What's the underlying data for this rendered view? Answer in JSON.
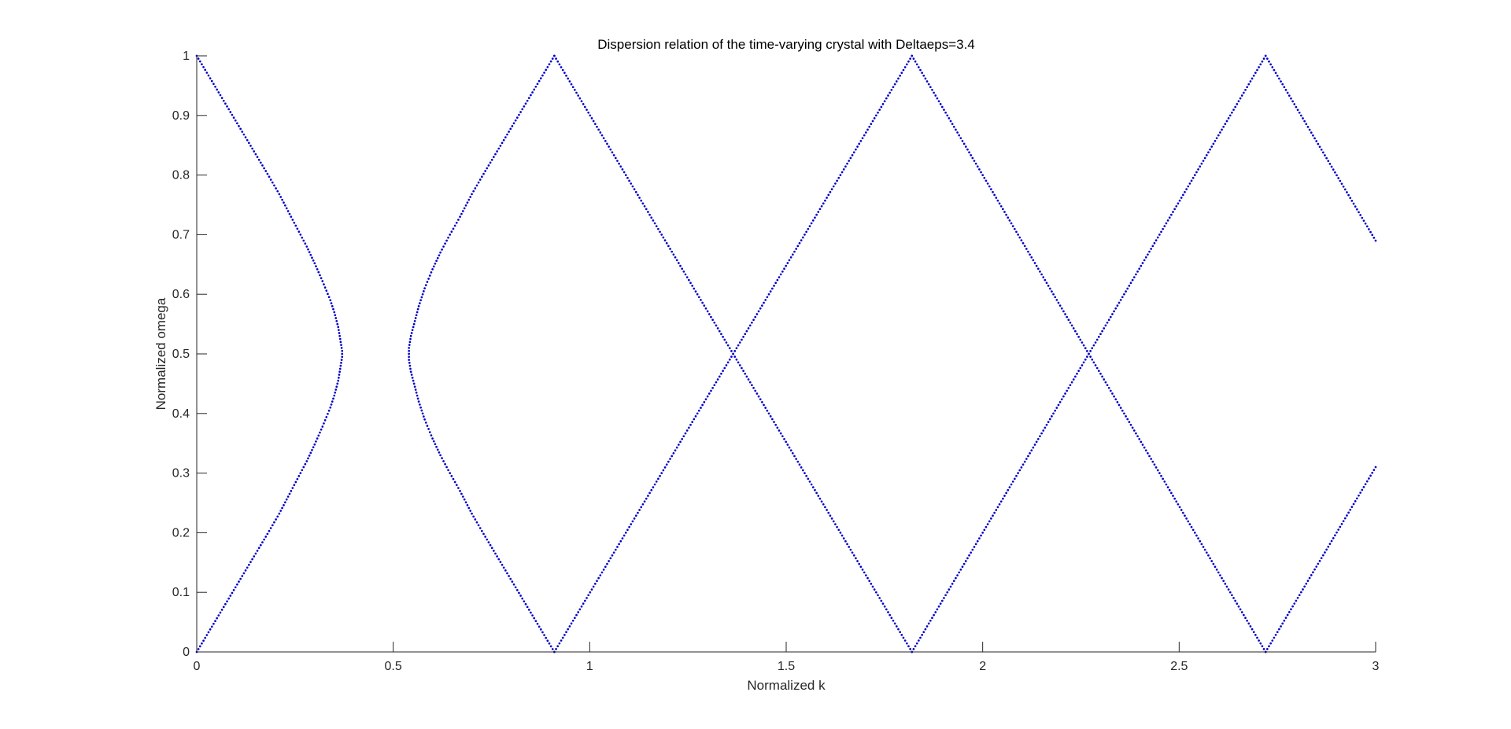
{
  "chart_data": {
    "type": "scatter",
    "title": "Dispersion relation of the time-varying crystal with Deltaeps=3.4",
    "xlabel": "Normalized k",
    "ylabel": "Normalized omega",
    "xlim": [
      0,
      3
    ],
    "ylim": [
      0,
      1
    ],
    "xticks": [
      0,
      0.5,
      1,
      1.5,
      2,
      2.5,
      3
    ],
    "xtick_labels": [
      "0",
      "0.5",
      "1",
      "1.5",
      "2",
      "2.5",
      "3"
    ],
    "yticks": [
      0,
      0.1,
      0.2,
      0.3,
      0.4,
      0.5,
      0.6,
      0.7,
      0.8,
      0.9,
      1
    ],
    "ytick_labels": [
      "0",
      "0.1",
      "0.2",
      "0.3",
      "0.4",
      "0.5",
      "0.6",
      "0.7",
      "0.8",
      "0.9",
      "1"
    ],
    "grid": false,
    "marker": "dot",
    "color": "#0000c8",
    "axis_color": "#262626",
    "series": [
      {
        "x": [
          0,
          0.03,
          0.06,
          0.09,
          0.12,
          0.15,
          0.18,
          0.21,
          0.24,
          0.26,
          0.28,
          0.3,
          0.32,
          0.34,
          0.35,
          0.36,
          0.365,
          0.37,
          0.37,
          0.365,
          0.36,
          0.35,
          0.34,
          0.32,
          0.3,
          0.28,
          0.26,
          0.24,
          0.21,
          0.18,
          0.15,
          0.12,
          0.09,
          0.06,
          0.03,
          0
        ],
        "y": [
          0,
          0.033,
          0.066,
          0.099,
          0.132,
          0.165,
          0.198,
          0.232,
          0.27,
          0.295,
          0.32,
          0.348,
          0.378,
          0.41,
          0.43,
          0.455,
          0.475,
          0.495,
          0.505,
          0.525,
          0.545,
          0.57,
          0.59,
          0.622,
          0.652,
          0.68,
          0.705,
          0.73,
          0.768,
          0.802,
          0.835,
          0.868,
          0.901,
          0.934,
          0.967,
          1
        ]
      },
      {
        "x": [
          0.91,
          0.88,
          0.85,
          0.82,
          0.79,
          0.76,
          0.73,
          0.7,
          0.67,
          0.64,
          0.62,
          0.6,
          0.58,
          0.565,
          0.555,
          0.545,
          0.54,
          0.54,
          0.545,
          0.555,
          0.565,
          0.58,
          0.6,
          0.62,
          0.64,
          0.67,
          0.7,
          0.73,
          0.76,
          0.79,
          0.82,
          0.85,
          0.88,
          0.91
        ],
        "y": [
          0,
          0.033,
          0.066,
          0.099,
          0.132,
          0.165,
          0.198,
          0.232,
          0.27,
          0.305,
          0.33,
          0.358,
          0.39,
          0.42,
          0.445,
          0.47,
          0.49,
          0.51,
          0.53,
          0.555,
          0.58,
          0.61,
          0.642,
          0.67,
          0.695,
          0.73,
          0.768,
          0.802,
          0.835,
          0.868,
          0.901,
          0.934,
          0.967,
          1
        ]
      },
      {
        "x": [
          0.91,
          1.82
        ],
        "y": [
          0,
          1
        ]
      },
      {
        "x": [
          0.91,
          1.82
        ],
        "y": [
          1,
          0
        ]
      },
      {
        "x": [
          1.82,
          2.72
        ],
        "y": [
          0,
          1
        ]
      },
      {
        "x": [
          1.82,
          2.72
        ],
        "y": [
          1,
          0
        ]
      },
      {
        "x": [
          2.72,
          3
        ],
        "y": [
          0,
          0.31
        ]
      },
      {
        "x": [
          2.72,
          3
        ],
        "y": [
          1,
          0.69
        ]
      }
    ]
  }
}
